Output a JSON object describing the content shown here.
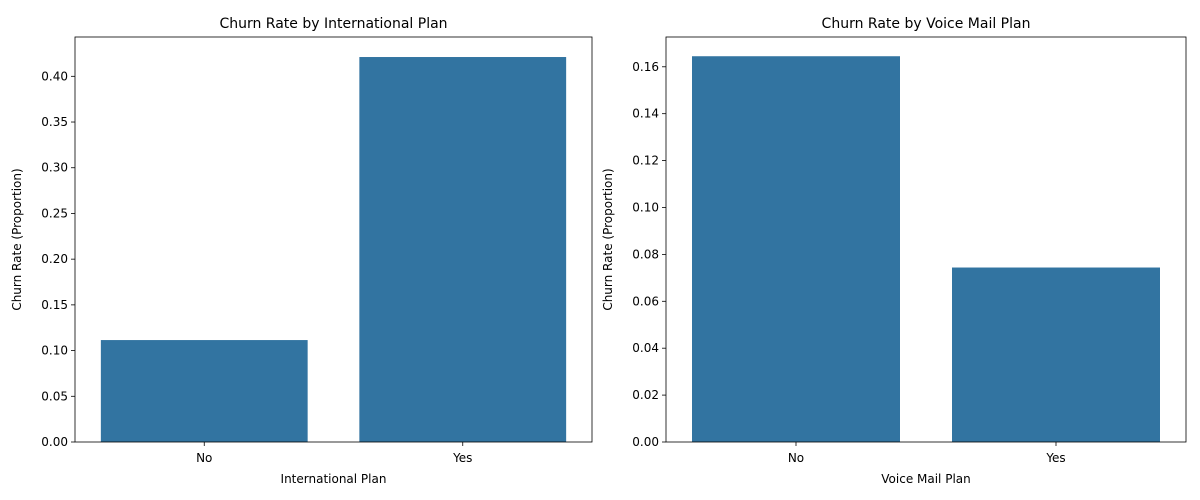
{
  "chart_data": [
    {
      "type": "bar",
      "title": "Churn Rate by International Plan",
      "xlabel": "International Plan",
      "ylabel": "Churn Rate (Proportion)",
      "categories": [
        "No",
        "Yes"
      ],
      "values": [
        0.1115,
        0.4211
      ],
      "ylim": [
        0,
        0.443
      ],
      "yticks": [
        "0.00",
        "0.05",
        "0.10",
        "0.15",
        "0.20",
        "0.25",
        "0.30",
        "0.35",
        "0.40"
      ],
      "bar_color": "#3274a1",
      "grid": false,
      "legend": "none"
    },
    {
      "type": "bar",
      "title": "Churn Rate by Voice Mail Plan",
      "xlabel": "Voice Mail Plan",
      "ylabel": "Churn Rate (Proportion)",
      "categories": [
        "No",
        "Yes"
      ],
      "values": [
        0.1645,
        0.0744
      ],
      "ylim": [
        0,
        0.1727
      ],
      "yticks": [
        "0.00",
        "0.02",
        "0.04",
        "0.06",
        "0.08",
        "0.10",
        "0.12",
        "0.14",
        "0.16"
      ],
      "bar_color": "#3274a1",
      "grid": false,
      "legend": "none"
    }
  ]
}
